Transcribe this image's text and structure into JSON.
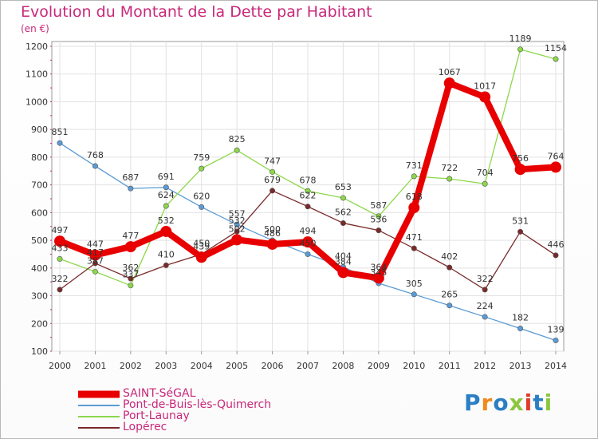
{
  "title": "Evolution du Montant de la Dette par Habitant",
  "subtitle": "(en €)",
  "logo": {
    "text": "Proxiti",
    "colors": [
      "#2a7fc4",
      "#f08a1c",
      "#2a7fc4",
      "#8cc63f",
      "#e23a2a",
      "#2a7fc4",
      "#8cc63f"
    ]
  },
  "chart_data": {
    "type": "line",
    "x": [
      "2000",
      "2001",
      "2002",
      "2003",
      "2004",
      "2005",
      "2006",
      "2007",
      "2008",
      "2009",
      "2010",
      "2011",
      "2012",
      "2013",
      "2014"
    ],
    "ylim": [
      100,
      1200
    ],
    "yticks": [
      100,
      200,
      300,
      400,
      500,
      600,
      700,
      800,
      900,
      1000,
      1100,
      1200
    ],
    "grid": true,
    "legend_position": "bottom-left",
    "series": [
      {
        "name": "SAINT-SéGAL",
        "color": "#e80000",
        "width": 8,
        "values": [
          497,
          447,
          477,
          532,
          439,
          502,
          486,
          494,
          384,
          364,
          618,
          1067,
          1017,
          756,
          764
        ]
      },
      {
        "name": "Pont-de-Buis-lès-Quimerch",
        "color": "#5b9bd5",
        "width": 1.3,
        "values": [
          851,
          768,
          687,
          691,
          620,
          557,
          500,
          450,
          404,
          345,
          305,
          265,
          224,
          182,
          139
        ]
      },
      {
        "name": "Port-Launay",
        "color": "#8cd84a",
        "width": 1.3,
        "values": [
          433,
          387,
          337,
          624,
          759,
          825,
          747,
          678,
          653,
          587,
          731,
          722,
          704,
          1189,
          1154
        ]
      },
      {
        "name": "Lopérec",
        "color": "#7a2a2a",
        "width": 1.3,
        "values": [
          322,
          417,
          362,
          410,
          450,
          532,
          679,
          622,
          562,
          536,
          471,
          402,
          322,
          531,
          446
        ]
      }
    ]
  }
}
